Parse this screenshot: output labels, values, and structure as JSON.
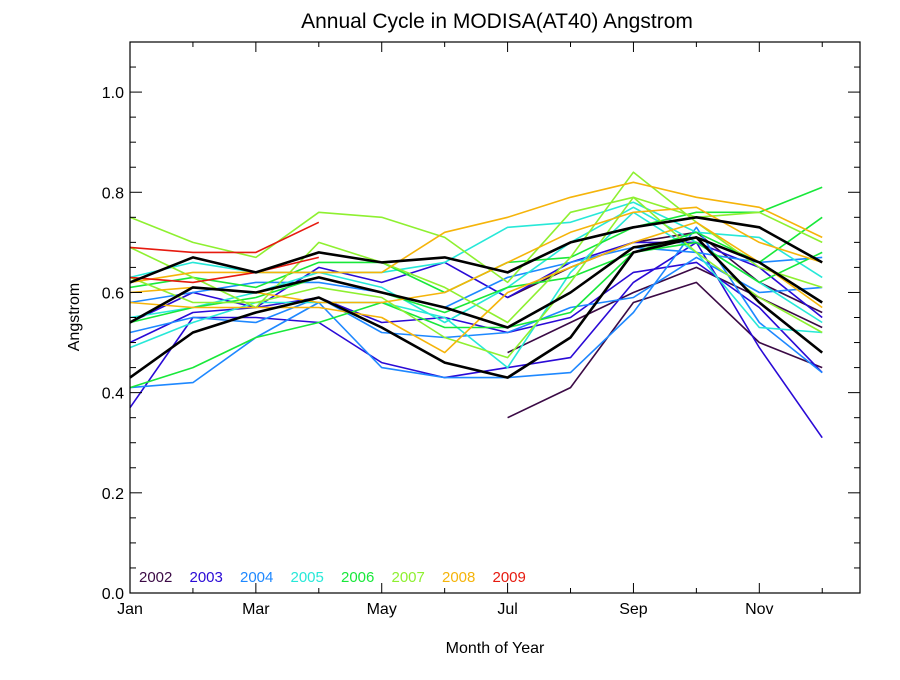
{
  "chart_data": {
    "type": "line",
    "title": "Annual Cycle in MODISA(AT40) Angstrom",
    "xlabel": "Month of Year",
    "ylabel": "Angstrom",
    "xlim": [
      1,
      12.6
    ],
    "ylim": [
      0,
      1.1
    ],
    "x_ticks": [
      {
        "value": 1,
        "label": "Jan"
      },
      {
        "value": 3,
        "label": "Mar"
      },
      {
        "value": 5,
        "label": "May"
      },
      {
        "value": 7,
        "label": "Jul"
      },
      {
        "value": 9,
        "label": "Sep"
      },
      {
        "value": 11,
        "label": "Nov"
      }
    ],
    "y_ticks": [
      {
        "value": 0.0,
        "label": "0.0"
      },
      {
        "value": 0.2,
        "label": "0.2"
      },
      {
        "value": 0.4,
        "label": "0.4"
      },
      {
        "value": 0.6,
        "label": "0.6"
      },
      {
        "value": 0.8,
        "label": "0.8"
      },
      {
        "value": 1.0,
        "label": "1.0"
      }
    ],
    "grid": false,
    "legend_position": "bottom-left",
    "legend": [
      {
        "name": "2002",
        "color": "#3b0a45"
      },
      {
        "name": "2003",
        "color": "#2a0ad6"
      },
      {
        "name": "2004",
        "color": "#1e88ff"
      },
      {
        "name": "2005",
        "color": "#27e8d8"
      },
      {
        "name": "2006",
        "color": "#18e83a"
      },
      {
        "name": "2007",
        "color": "#8ef030"
      },
      {
        "name": "2008",
        "color": "#f5b40a"
      },
      {
        "name": "2009",
        "color": "#e61a0f"
      }
    ],
    "x": [
      1,
      2,
      3,
      4,
      5,
      6,
      7,
      8,
      9,
      10,
      11,
      12
    ],
    "series": [
      {
        "color": "#3b0a45",
        "values": [
          null,
          null,
          null,
          null,
          null,
          null,
          0.35,
          0.41,
          0.58,
          0.62,
          0.5,
          0.45
        ]
      },
      {
        "color": "#3b0a45",
        "values": [
          null,
          null,
          null,
          null,
          null,
          null,
          0.48,
          0.54,
          0.6,
          0.65,
          0.59,
          0.53
        ]
      },
      {
        "color": "#3b0a45",
        "values": [
          null,
          null,
          null,
          null,
          null,
          null,
          0.59,
          0.65,
          0.7,
          0.72,
          0.62,
          0.56
        ]
      },
      {
        "color": "#2a0ad6",
        "values": [
          0.37,
          0.55,
          0.55,
          0.54,
          0.46,
          0.43,
          0.45,
          0.47,
          0.62,
          0.7,
          0.49,
          0.31
        ]
      },
      {
        "color": "#2a0ad6",
        "values": [
          0.5,
          0.56,
          0.57,
          0.59,
          0.54,
          0.55,
          0.52,
          0.55,
          0.64,
          0.66,
          0.57,
          0.44
        ]
      },
      {
        "color": "#2a0ad6",
        "values": [
          0.54,
          0.6,
          0.57,
          0.65,
          0.62,
          0.66,
          0.59,
          0.66,
          0.7,
          0.7,
          0.65,
          0.55
        ]
      },
      {
        "color": "#1e88ff",
        "values": [
          0.41,
          0.42,
          0.51,
          0.58,
          0.45,
          0.43,
          0.43,
          0.44,
          0.56,
          0.73,
          0.54,
          0.44
        ]
      },
      {
        "color": "#1e88ff",
        "values": [
          0.52,
          0.55,
          0.54,
          0.59,
          0.52,
          0.51,
          0.52,
          0.57,
          0.59,
          0.67,
          0.6,
          0.61
        ]
      },
      {
        "color": "#1e88ff",
        "values": [
          0.58,
          0.6,
          0.62,
          0.62,
          0.6,
          0.57,
          0.63,
          0.66,
          0.69,
          0.68,
          0.66,
          0.67
        ]
      },
      {
        "color": "#27e8d8",
        "values": [
          0.49,
          0.54,
          0.58,
          0.58,
          0.58,
          0.55,
          0.45,
          0.64,
          0.76,
          0.68,
          0.53,
          0.52
        ]
      },
      {
        "color": "#27e8d8",
        "values": [
          0.55,
          0.57,
          0.6,
          0.64,
          0.61,
          0.54,
          0.61,
          0.7,
          0.77,
          0.7,
          0.62,
          0.54
        ]
      },
      {
        "color": "#27e8d8",
        "values": [
          0.63,
          0.66,
          0.64,
          0.64,
          0.64,
          0.66,
          0.73,
          0.74,
          0.78,
          0.72,
          0.71,
          0.63
        ]
      },
      {
        "color": "#18e83a",
        "values": [
          0.41,
          0.45,
          0.51,
          0.54,
          0.58,
          0.53,
          0.53,
          0.56,
          0.68,
          0.7,
          0.62,
          0.68
        ]
      },
      {
        "color": "#18e83a",
        "values": [
          0.54,
          0.57,
          0.59,
          0.63,
          0.6,
          0.56,
          0.61,
          0.63,
          0.68,
          0.72,
          0.66,
          0.75
        ]
      },
      {
        "color": "#18e83a",
        "values": [
          0.61,
          0.63,
          0.61,
          0.66,
          0.66,
          0.6,
          0.66,
          0.67,
          0.73,
          0.76,
          0.76,
          0.81
        ]
      },
      {
        "color": "#8ef030",
        "values": [
          0.75,
          0.7,
          0.67,
          0.76,
          0.75,
          0.71,
          0.62,
          0.76,
          0.79,
          0.75,
          0.76,
          0.7
        ]
      },
      {
        "color": "#8ef030",
        "values": [
          0.69,
          0.63,
          0.57,
          0.7,
          0.66,
          0.61,
          0.54,
          0.67,
          0.84,
          0.74,
          0.65,
          0.61
        ]
      },
      {
        "color": "#8ef030",
        "values": [
          0.63,
          0.58,
          0.58,
          0.61,
          0.59,
          0.51,
          0.47,
          0.62,
          0.79,
          0.68,
          0.59,
          0.52
        ]
      },
      {
        "color": "#f5b40a",
        "values": [
          0.62,
          0.64,
          0.64,
          0.64,
          0.64,
          0.72,
          0.75,
          0.79,
          0.82,
          0.79,
          0.77,
          0.71
        ]
      },
      {
        "color": "#f5b40a",
        "values": [
          0.6,
          0.61,
          0.6,
          0.58,
          0.58,
          0.6,
          0.66,
          0.72,
          0.76,
          0.77,
          0.7,
          0.66
        ]
      },
      {
        "color": "#f5b40a",
        "values": [
          0.58,
          0.57,
          0.57,
          0.57,
          0.55,
          0.48,
          0.6,
          0.65,
          0.7,
          0.74,
          0.66,
          0.57
        ]
      },
      {
        "color": "#e61a0f",
        "values": [
          0.69,
          0.68,
          0.68,
          0.74,
          null,
          null,
          null,
          null,
          null,
          null,
          null,
          null
        ]
      },
      {
        "color": "#e61a0f",
        "values": [
          0.63,
          0.62,
          0.64,
          0.67,
          null,
          null,
          null,
          null,
          null,
          null,
          null,
          null
        ]
      },
      {
        "color": "#000000",
        "width": 2.6,
        "values": [
          0.43,
          0.52,
          0.56,
          0.59,
          0.53,
          0.46,
          0.43,
          0.51,
          0.68,
          0.71,
          0.58,
          0.48
        ]
      },
      {
        "color": "#000000",
        "width": 2.6,
        "values": [
          0.54,
          0.61,
          0.6,
          0.63,
          0.6,
          0.57,
          0.53,
          0.6,
          0.69,
          0.71,
          0.66,
          0.58
        ]
      },
      {
        "color": "#000000",
        "width": 2.6,
        "values": [
          0.62,
          0.67,
          0.64,
          0.68,
          0.66,
          0.67,
          0.64,
          0.7,
          0.73,
          0.75,
          0.73,
          0.66
        ]
      }
    ]
  }
}
